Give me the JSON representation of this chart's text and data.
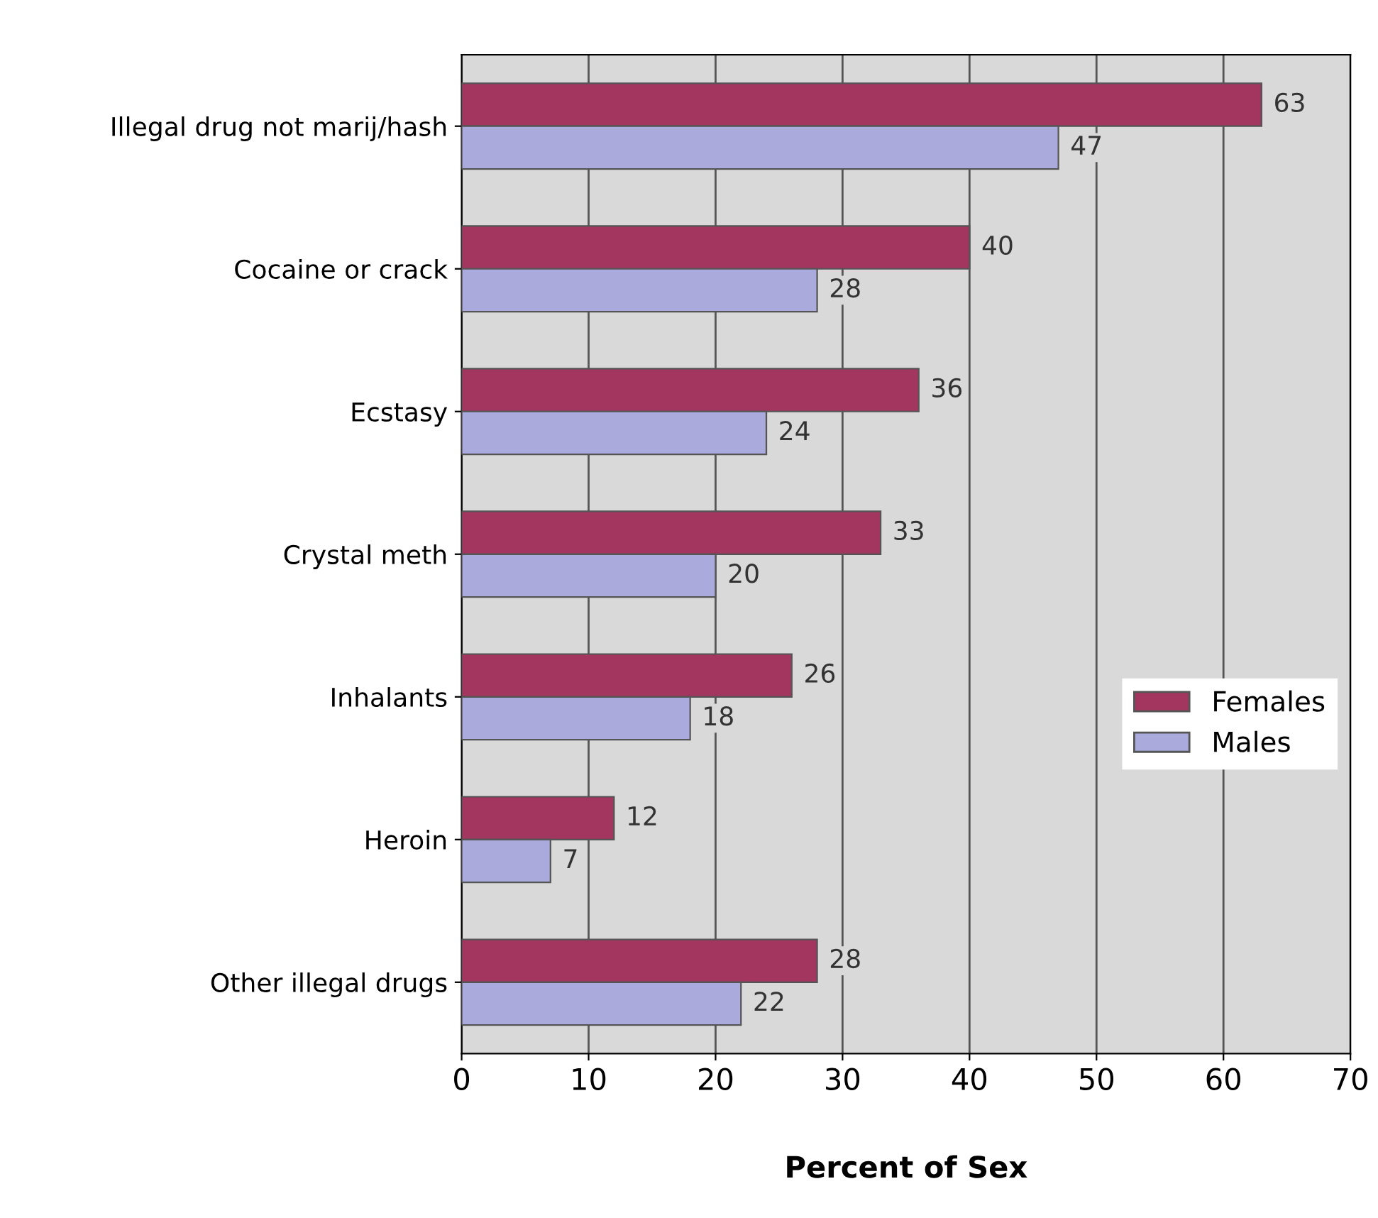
{
  "chart_data": {
    "type": "bar",
    "orientation": "horizontal",
    "xlabel": "Percent of Sex",
    "categories": [
      "Illegal drug not marij/hash",
      "Cocaine or crack",
      "Ecstasy",
      "Crystal meth",
      "Inhalants",
      "Heroin",
      "Other illegal drugs"
    ],
    "series": [
      {
        "name": "Females",
        "color": "#a3365f",
        "values": [
          63,
          40,
          36,
          33,
          26,
          12,
          28
        ]
      },
      {
        "name": "Males",
        "color": "#aaaadc",
        "values": [
          47,
          28,
          24,
          20,
          18,
          7,
          22
        ]
      }
    ],
    "xlim": [
      0,
      70
    ],
    "xticks": [
      0,
      10,
      20,
      30,
      40,
      50,
      60,
      70
    ],
    "grid": "x",
    "legend": "right",
    "data_labels": true
  }
}
